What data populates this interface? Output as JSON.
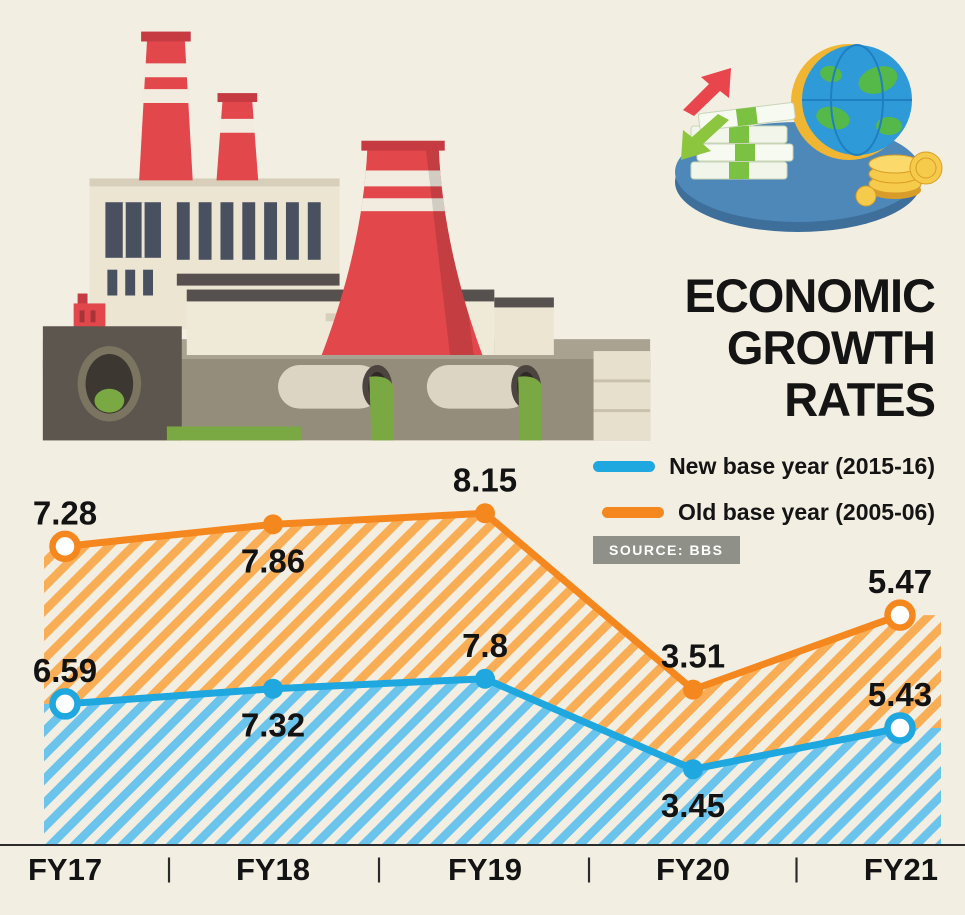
{
  "colors": {
    "background": "#f3eee2",
    "new_base": "#1fa7e0",
    "old_base": "#f5871f",
    "new_hatch": "#6ac4ec",
    "old_hatch": "#f9ad55",
    "text": "#141414",
    "source_bg": "#8f9189",
    "axis": "#2b2b2b"
  },
  "title": {
    "lines": [
      "ECONOMIC",
      "GROWTH",
      "RATES"
    ]
  },
  "legend": [
    {
      "label": "New base year (2015-16)",
      "color": "#1fa7e0"
    },
    {
      "label": "Old base year (2005-06)",
      "color": "#f5871f"
    }
  ],
  "source": "SOURCE: BBS",
  "chart_data": {
    "type": "line",
    "title": "ECONOMIC GROWTH RATES",
    "categories": [
      "FY17",
      "FY18",
      "FY19",
      "FY20",
      "FY21"
    ],
    "series": [
      {
        "name": "Old base year (2005-06)",
        "color": "#f5871f",
        "hatch": "#f9ad55",
        "values": [
          7.28,
          7.86,
          8.15,
          3.51,
          5.47
        ]
      },
      {
        "name": "New base year (2015-16)",
        "color": "#1fa7e0",
        "hatch": "#6ac4ec",
        "values": [
          6.59,
          7.32,
          7.8,
          3.45,
          5.43
        ]
      }
    ],
    "xlabel": "",
    "ylabel": "",
    "ylim": [
      0,
      9
    ],
    "grid": false,
    "legend_position": "top-right",
    "area_style": "diagonal-hatch",
    "tick_separator": "|"
  },
  "illustrations": {
    "factory": "power-plant with chimneys, cooling tower, waste pipes",
    "economy": "globe with money stacks, coins and exchange arrows"
  }
}
